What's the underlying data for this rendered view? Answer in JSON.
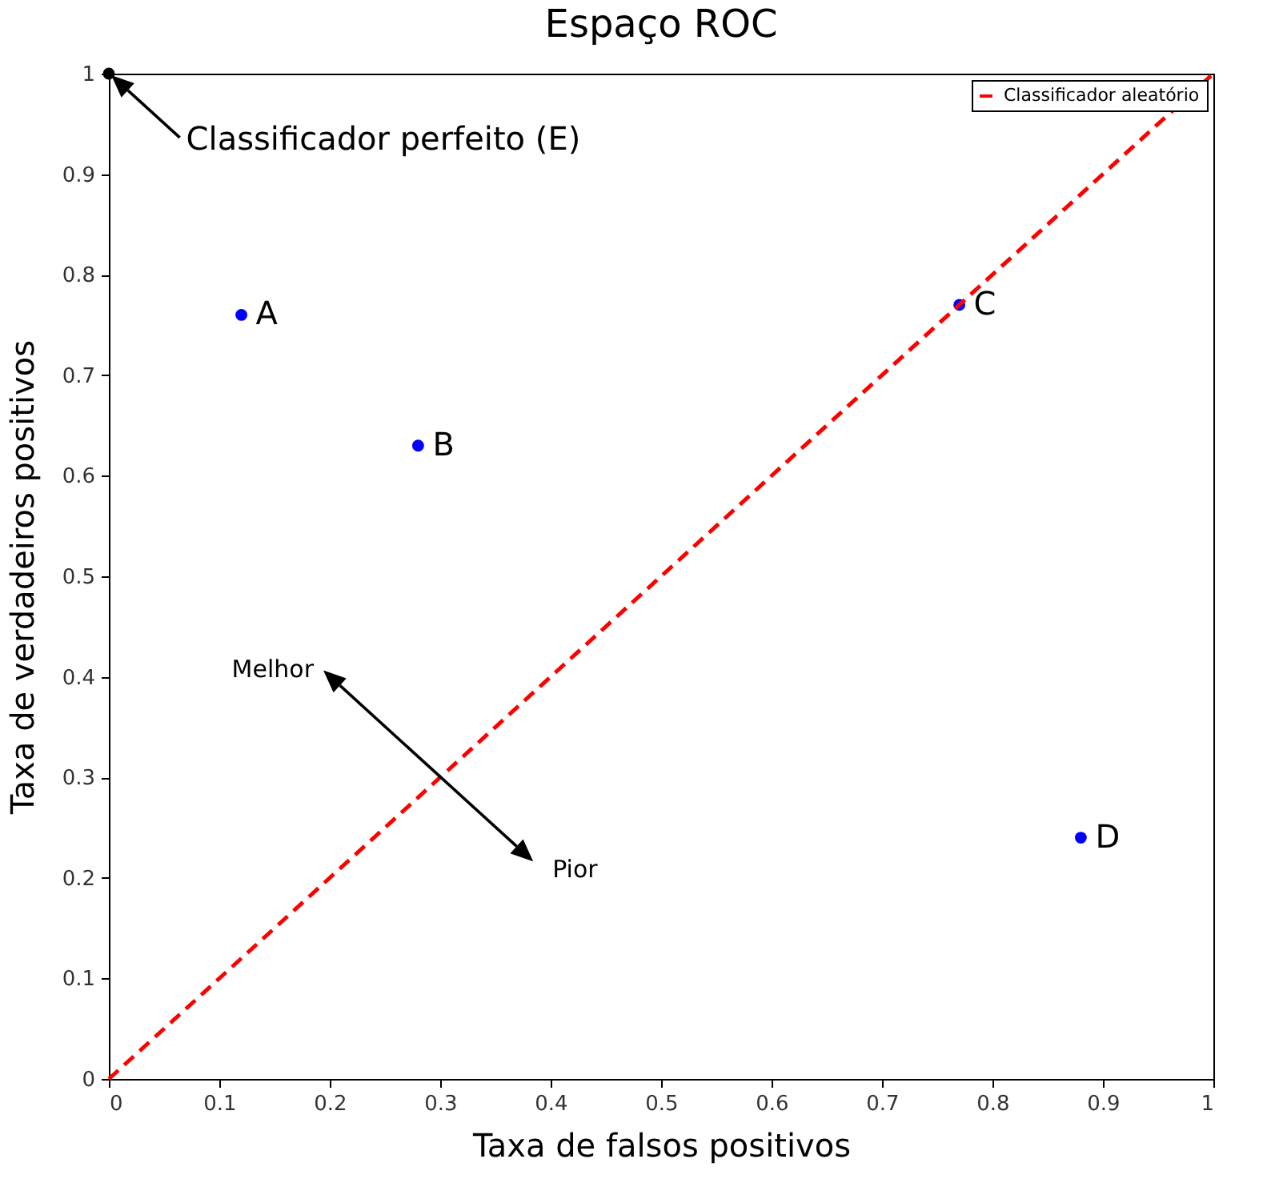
{
  "chart_data": {
    "type": "scatter",
    "title": "Espaço ROC",
    "xlabel": "Taxa de falsos positivos",
    "ylabel": "Taxa de verdadeiros positivos",
    "xlim": [
      0,
      1
    ],
    "ylim": [
      0,
      1
    ],
    "xticks": [
      0,
      0.1,
      0.2,
      0.3,
      0.4,
      0.5,
      0.6,
      0.7,
      0.8,
      0.9,
      1
    ],
    "yticks": [
      0,
      0.1,
      0.2,
      0.3,
      0.4,
      0.5,
      0.6,
      0.7,
      0.8,
      0.9,
      1
    ],
    "series": [
      {
        "color": "#0000ff",
        "x": [
          0.12,
          0.28,
          0.77,
          0.88
        ],
        "values": [
          0.76,
          0.63,
          0.77,
          0.24
        ]
      },
      {
        "color": "#000000",
        "x": [
          0
        ],
        "values": [
          1
        ]
      },
      {
        "type": "line",
        "name": "Classificador aleatório",
        "color": "#ff0000",
        "line_style": "dashed",
        "marker": "none",
        "x": [
          0,
          1
        ],
        "values": [
          0,
          1
        ]
      }
    ],
    "annotations": [
      {
        "text": "A",
        "x": 0.12,
        "y": 0.76
      },
      {
        "text": "B",
        "x": 0.28,
        "y": 0.63
      },
      {
        "text": "C",
        "x": 0.77,
        "y": 0.77
      },
      {
        "text": "D",
        "x": 0.88,
        "y": 0.24
      },
      "Classificador perfeito (E)",
      "Melhor",
      "Pior"
    ],
    "marker": "circle",
    "legend": "top right",
    "grid": false
  }
}
